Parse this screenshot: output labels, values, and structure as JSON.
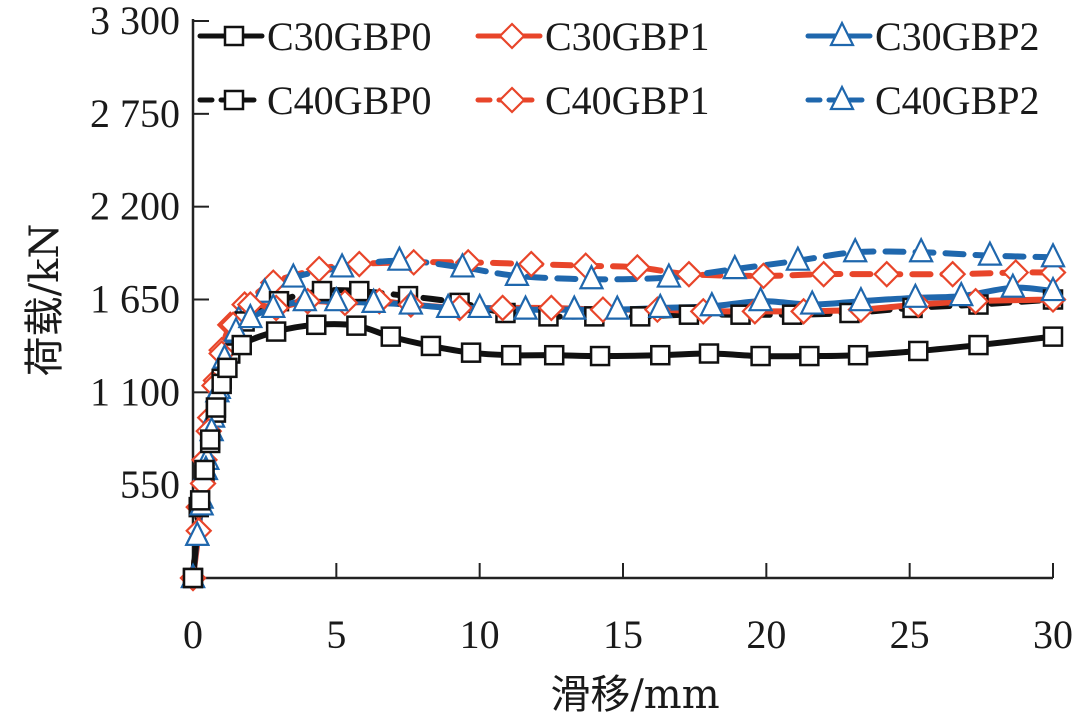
{
  "chart_data": {
    "type": "line",
    "title": "",
    "xlabel": "滑移/mm",
    "ylabel": "荷载/kN",
    "xlim": [
      0,
      30
    ],
    "ylim": [
      0,
      3300
    ],
    "xticks": [
      0,
      5,
      10,
      15,
      20,
      25,
      30
    ],
    "xtick_labels": [
      "0",
      "5",
      "10",
      "15",
      "20",
      "25",
      "30"
    ],
    "yticks": [
      550,
      1100,
      1650,
      2200,
      2750,
      3300
    ],
    "ytick_labels": [
      "550",
      "1 100",
      "1 650",
      "2 200",
      "2 750",
      "3 300"
    ],
    "grid": false,
    "legend_position": "top",
    "colors": {
      "black": "#111111",
      "red": "#e8452a",
      "blue": "#1f67ad",
      "axis": "#222222"
    },
    "series": [
      {
        "name": "C30GBP0",
        "color": "#111111",
        "dash": "solid",
        "marker": "square",
        "x": [
          0,
          0.25,
          0.4,
          0.6,
          0.8,
          1.0,
          1.2,
          1.7,
          2.9,
          4.3,
          5.7,
          6.9,
          8.3,
          9.7,
          11.1,
          12.6,
          14.2,
          16.3,
          18.0,
          19.8,
          21.5,
          23.2,
          25.3,
          27.4,
          30.0
        ],
        "y": [
          0,
          460,
          640,
          820,
          1010,
          1150,
          1245,
          1380,
          1460,
          1500,
          1495,
          1430,
          1375,
          1335,
          1320,
          1320,
          1315,
          1320,
          1330,
          1315,
          1315,
          1320,
          1345,
          1380,
          1430
        ]
      },
      {
        "name": "C30GBP1",
        "color": "#e8452a",
        "dash": "solid",
        "marker": "diamond",
        "x": [
          0,
          0.2,
          0.35,
          0.55,
          0.75,
          1.0,
          1.4,
          2.0,
          2.9,
          4.0,
          5.3,
          6.5,
          7.6,
          9.3,
          10.8,
          12.5,
          14.3,
          16.2,
          17.8,
          19.6,
          21.3,
          23.3,
          25.3,
          27.3,
          30.0
        ],
        "y": [
          0,
          280,
          560,
          870,
          1140,
          1330,
          1500,
          1620,
          1600,
          1640,
          1630,
          1640,
          1620,
          1600,
          1600,
          1600,
          1590,
          1590,
          1580,
          1580,
          1580,
          1590,
          1620,
          1640,
          1650
        ]
      },
      {
        "name": "C30GBP2",
        "color": "#1f67ad",
        "dash": "solid",
        "marker": "triangle",
        "x": [
          0,
          0.15,
          0.3,
          0.45,
          0.65,
          0.85,
          1.1,
          1.5,
          2.0,
          2.8,
          3.9,
          5.0,
          6.3,
          7.6,
          8.9,
          10.0,
          11.6,
          13.3,
          14.8,
          16.3,
          18.1,
          19.8,
          21.6,
          23.3,
          25.2,
          26.8,
          28.6,
          30.0
        ],
        "y": [
          0,
          250,
          430,
          640,
          870,
          1100,
          1300,
          1460,
          1540,
          1600,
          1640,
          1640,
          1630,
          1620,
          1600,
          1600,
          1590,
          1590,
          1590,
          1600,
          1610,
          1640,
          1620,
          1640,
          1660,
          1670,
          1720,
          1700
        ]
      },
      {
        "name": "C40GBP0",
        "color": "#111111",
        "dash": "dashed",
        "marker": "square",
        "x": [
          0,
          0.2,
          0.4,
          0.6,
          0.8,
          1.0,
          1.3,
          1.8,
          3.0,
          4.5,
          5.8,
          7.5,
          9.3,
          10.9,
          12.4,
          14.0,
          15.6,
          17.3,
          19.1,
          20.9,
          22.9,
          25.1,
          27.4,
          30.0
        ],
        "y": [
          0,
          420,
          610,
          800,
          980,
          1180,
          1330,
          1520,
          1640,
          1700,
          1700,
          1670,
          1630,
          1570,
          1550,
          1550,
          1550,
          1560,
          1560,
          1560,
          1570,
          1600,
          1620,
          1650
        ]
      },
      {
        "name": "C40GBP1",
        "color": "#e8452a",
        "dash": "dashed",
        "marker": "diamond",
        "x": [
          0,
          0.2,
          0.4,
          0.6,
          0.8,
          1.0,
          1.3,
          1.8,
          2.8,
          4.4,
          5.8,
          7.7,
          9.6,
          11.8,
          13.7,
          15.5,
          17.3,
          19.9,
          22.0,
          24.2,
          26.5,
          28.7,
          30.0
        ],
        "y": [
          0,
          420,
          700,
          950,
          1170,
          1350,
          1500,
          1620,
          1750,
          1830,
          1860,
          1870,
          1870,
          1860,
          1850,
          1840,
          1800,
          1790,
          1800,
          1800,
          1800,
          1810,
          1810
        ]
      },
      {
        "name": "C40GBP2",
        "color": "#1f67ad",
        "dash": "dashed",
        "marker": "triangle",
        "x": [
          0,
          0.15,
          0.3,
          0.5,
          0.7,
          0.9,
          1.2,
          1.6,
          2.5,
          3.5,
          5.2,
          7.2,
          9.4,
          11.3,
          13.9,
          16.6,
          18.9,
          21.1,
          23.1,
          25.4,
          27.8,
          30.0
        ],
        "y": [
          0,
          250,
          470,
          700,
          950,
          1120,
          1330,
          1530,
          1690,
          1780,
          1840,
          1880,
          1840,
          1790,
          1770,
          1780,
          1830,
          1880,
          1930,
          1930,
          1910,
          1900
        ]
      }
    ]
  }
}
